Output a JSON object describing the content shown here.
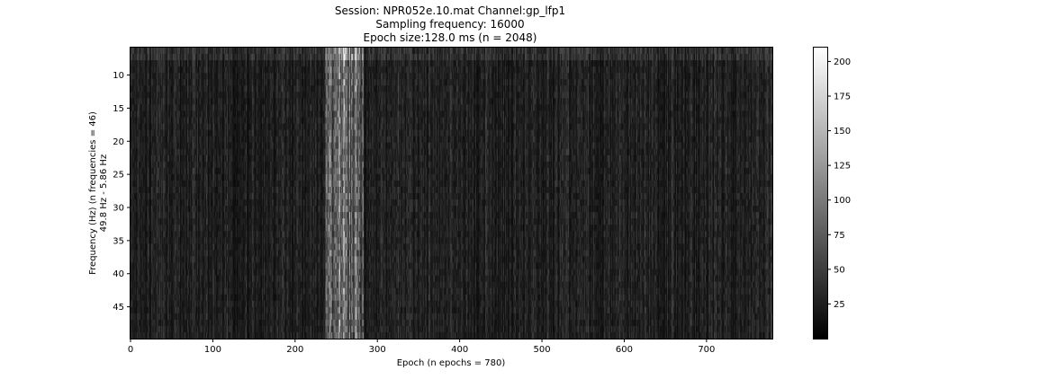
{
  "chart_data": {
    "type": "heatmap",
    "title_lines": [
      "Session: NPR052e.10.mat    Channel:gp_lfp1",
      "Sampling frequency: 16000",
      "Epoch size:128.0 ms (n = 2048)"
    ],
    "xlabel": "Epoch (n epochs = 780)",
    "ylabel_lines": [
      "Frequency (Hz) (n frequencies = 46)",
      "49.8 Hz - 5.86 Hz"
    ],
    "x_ticks": [
      {
        "value": 0,
        "label": "0"
      },
      {
        "value": 100,
        "label": "100"
      },
      {
        "value": 200,
        "label": "200"
      },
      {
        "value": 300,
        "label": "300"
      },
      {
        "value": 400,
        "label": "400"
      },
      {
        "value": 500,
        "label": "500"
      },
      {
        "value": 600,
        "label": "600"
      },
      {
        "value": 700,
        "label": "700"
      }
    ],
    "y_ticks": [
      {
        "value": 10,
        "label": "10"
      },
      {
        "value": 15,
        "label": "15"
      },
      {
        "value": 20,
        "label": "20"
      },
      {
        "value": 25,
        "label": "25"
      },
      {
        "value": 30,
        "label": "30"
      },
      {
        "value": 35,
        "label": "35"
      },
      {
        "value": 40,
        "label": "40"
      },
      {
        "value": 45,
        "label": "45"
      }
    ],
    "xlim": [
      0,
      780
    ],
    "ylim": [
      49.8,
      5.86
    ],
    "n_epochs": 780,
    "n_frequencies": 46,
    "colormap": "gray",
    "colorbar": {
      "vmin": 0,
      "vmax": 210,
      "ticks": [
        {
          "value": 25,
          "label": "25"
        },
        {
          "value": 50,
          "label": "50"
        },
        {
          "value": 75,
          "label": "75"
        },
        {
          "value": 100,
          "label": "100"
        },
        {
          "value": 125,
          "label": "125"
        },
        {
          "value": 150,
          "label": "150"
        },
        {
          "value": 175,
          "label": "175"
        },
        {
          "value": 200,
          "label": "200"
        }
      ]
    },
    "background_level": 25,
    "bright_band": {
      "epoch_start": 237,
      "epoch_end": 282,
      "level": 80
    }
  }
}
